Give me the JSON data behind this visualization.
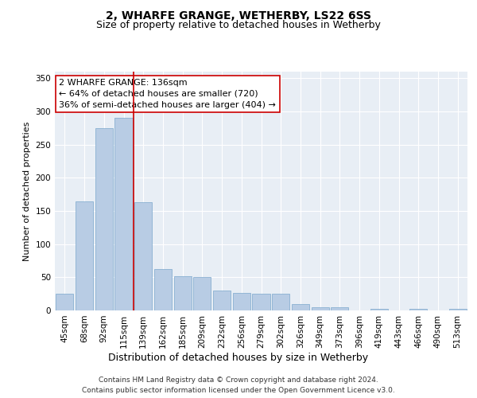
{
  "title": "2, WHARFE GRANGE, WETHERBY, LS22 6SS",
  "subtitle": "Size of property relative to detached houses in Wetherby",
  "xlabel": "Distribution of detached houses by size in Wetherby",
  "ylabel": "Number of detached properties",
  "categories": [
    "45sqm",
    "68sqm",
    "92sqm",
    "115sqm",
    "139sqm",
    "162sqm",
    "185sqm",
    "209sqm",
    "232sqm",
    "256sqm",
    "279sqm",
    "302sqm",
    "326sqm",
    "349sqm",
    "373sqm",
    "396sqm",
    "419sqm",
    "443sqm",
    "466sqm",
    "490sqm",
    "513sqm"
  ],
  "values": [
    25,
    165,
    275,
    290,
    163,
    62,
    52,
    50,
    30,
    27,
    25,
    25,
    10,
    5,
    5,
    0,
    2,
    0,
    2,
    0,
    2
  ],
  "bar_color": "#b8cce4",
  "bar_edge_color": "#7ba7cc",
  "marker_bin_index": 4,
  "marker_color": "#cc0000",
  "annotation_text": "2 WHARFE GRANGE: 136sqm\n← 64% of detached houses are smaller (720)\n36% of semi-detached houses are larger (404) →",
  "annotation_box_color": "#ffffff",
  "annotation_box_edge_color": "#cc0000",
  "ylim": [
    0,
    360
  ],
  "yticks": [
    0,
    50,
    100,
    150,
    200,
    250,
    300,
    350
  ],
  "plot_background": "#e8eef5",
  "footer_line1": "Contains HM Land Registry data © Crown copyright and database right 2024.",
  "footer_line2": "Contains public sector information licensed under the Open Government Licence v3.0.",
  "title_fontsize": 10,
  "subtitle_fontsize": 9,
  "xlabel_fontsize": 9,
  "ylabel_fontsize": 8,
  "tick_fontsize": 7.5,
  "annotation_fontsize": 8,
  "footer_fontsize": 6.5
}
